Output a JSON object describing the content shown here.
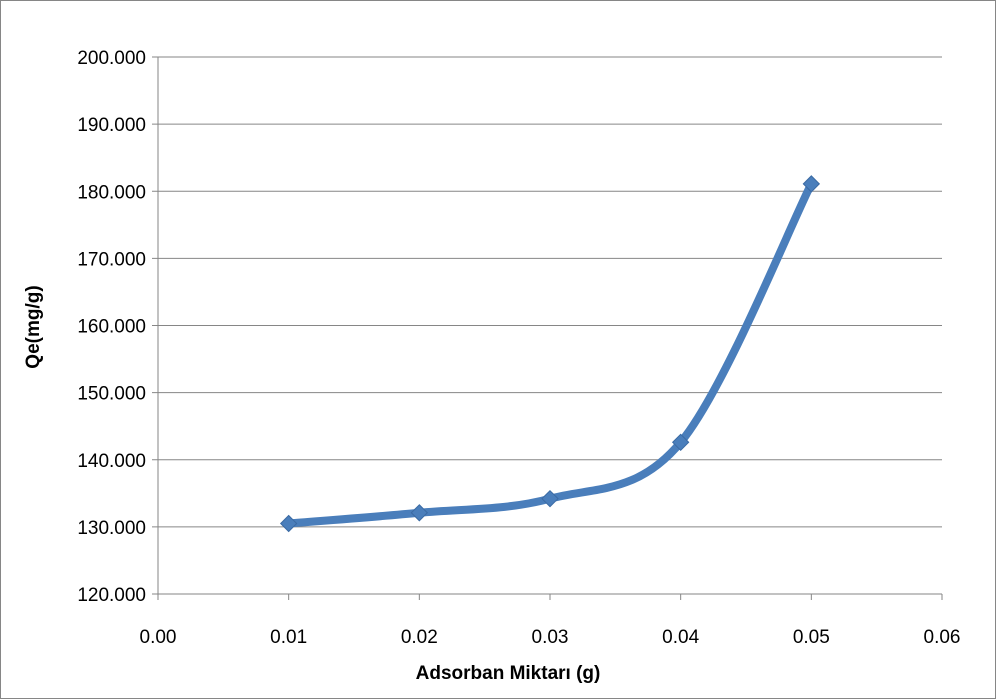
{
  "chart_data": {
    "type": "line",
    "title": "",
    "xlabel": "Adsorban Miktarı (g)",
    "ylabel": "Qe(mg/g)",
    "xlim": [
      0.0,
      0.06
    ],
    "ylim": [
      120,
      200
    ],
    "x_ticks": [
      "0.00",
      "0.01",
      "0.02",
      "0.03",
      "0.04",
      "0.05",
      "0.06"
    ],
    "y_ticks": [
      "120.000",
      "130.000",
      "140.000",
      "150.000",
      "160.000",
      "170.000",
      "180.000",
      "190.000",
      "200.000"
    ],
    "grid": "horizontal",
    "smooth": true,
    "marker": "diamond",
    "series_color": "#4A7EBB",
    "series": [
      {
        "x": [
          0.01,
          0.02,
          0.03,
          0.04,
          0.05
        ],
        "values": [
          130.5,
          132.1,
          134.2,
          142.6,
          181.1
        ]
      }
    ]
  }
}
